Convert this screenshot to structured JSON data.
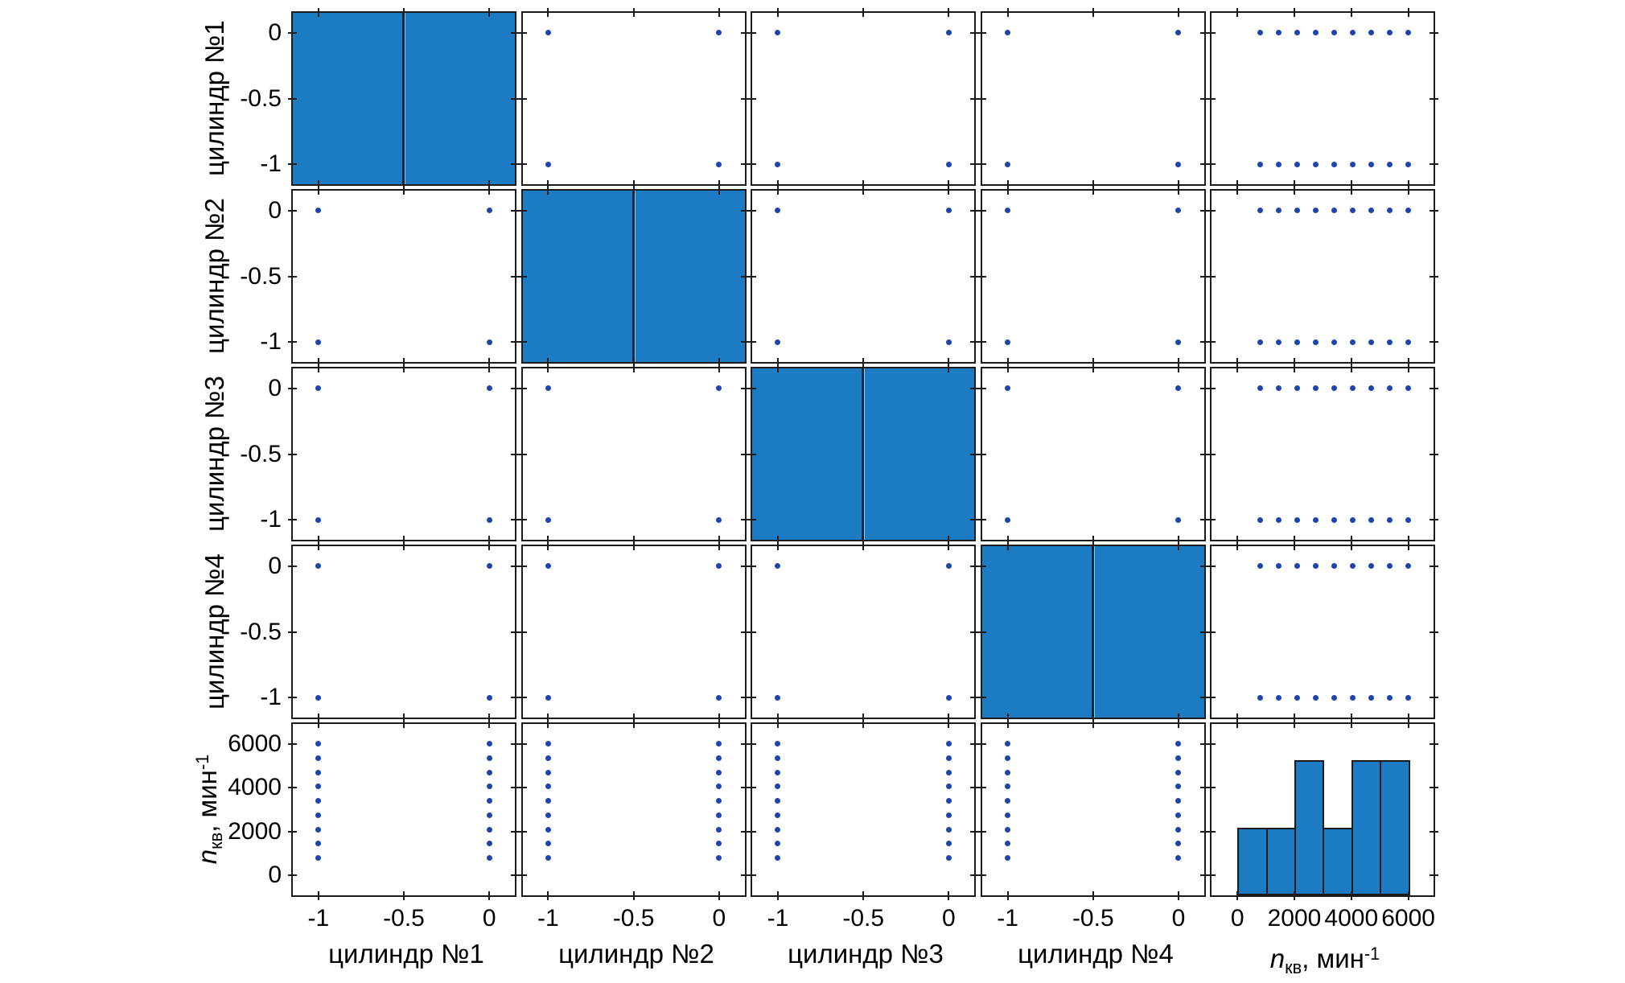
{
  "figure": {
    "background": "#ffffff"
  },
  "style": {
    "colors": {
      "bar_fill": "#1d7bc4",
      "bar_edge": "#1a1a1a",
      "hist_divider": "#0e2747",
      "hist_divider_accent": "#7fd0e8",
      "dot": "#1e44ad",
      "cell_border": "#1c1c1c",
      "tick": "#1c1c1c",
      "text": "#000000"
    }
  },
  "chart_data": {
    "type": "scatter-matrix",
    "title": "",
    "gridlines": false,
    "legend": null,
    "layout": "5x5 matrix, histograms on diagonal, scatter plots off-diagonal, y tick labels on left column only, x tick labels on bottom row only",
    "variables": [
      "цилиндр №1",
      "цилиндр №2",
      "цилиндр №3",
      "цилиндр №4",
      "nкв, мин-1"
    ],
    "speed_axis_label_parts": {
      "symbol": "n",
      "subscript": "кв",
      "unit_prefix": ", мин",
      "unit_superscript": "-1"
    },
    "cylinder_axes": {
      "levels": [
        -1,
        0
      ],
      "axis_range": [
        -1.15,
        0.15
      ],
      "tick_values": [
        -1,
        -0.5,
        0
      ],
      "tick_labels": [
        "-1",
        "-0.5",
        "0"
      ],
      "hist": {
        "bin_edges": [
          -1,
          -0.5,
          0
        ],
        "counts": [
          9,
          9
        ],
        "bar_fill_fraction": 1
      }
    },
    "speed_axis": {
      "values": [
        800,
        1450,
        2100,
        2750,
        3400,
        4050,
        4700,
        5350,
        6000
      ],
      "axis_range": [
        -900,
        6900
      ],
      "tick_values": [
        0,
        2000,
        4000,
        6000
      ],
      "tick_labels": [
        "0",
        "2000",
        "4000",
        "6000"
      ],
      "hist": {
        "bin_edges": [
          0,
          1000,
          2000,
          3000,
          4000,
          5000,
          6000
        ],
        "counts": [
          2,
          2,
          4,
          2,
          4,
          4
        ],
        "y_scale_max": 5.06
      }
    },
    "cylinder_pair_points": [
      [
        -1,
        -1
      ],
      [
        -1,
        0
      ],
      [
        0,
        -1
      ],
      [
        0,
        0
      ]
    ],
    "cylinder_levels_in_speed_cells": [
      0,
      -1
    ]
  }
}
